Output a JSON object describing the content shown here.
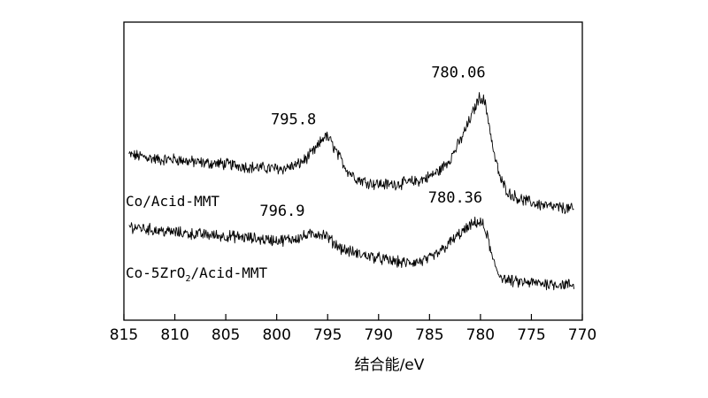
{
  "chart_data": {
    "type": "line",
    "xlabel": "结合能/eV",
    "ylabel": "",
    "xlim": [
      815,
      770
    ],
    "x_reversed": true,
    "x_ticks": [
      "815",
      "810",
      "805",
      "800",
      "795",
      "790",
      "785",
      "780",
      "775",
      "770"
    ],
    "y_ticks": false,
    "grid": false,
    "legend": "none",
    "series": [
      {
        "name": "Co/Acid-MMT",
        "label_parts": [
          "Co/Acid-MMT"
        ],
        "color": "#000000",
        "points": [
          [
            814.5,
            0.555
          ],
          [
            813,
            0.548
          ],
          [
            811.5,
            0.538
          ],
          [
            810,
            0.54
          ],
          [
            808.5,
            0.532
          ],
          [
            807,
            0.527
          ],
          [
            805.5,
            0.525
          ],
          [
            804,
            0.52
          ],
          [
            802.5,
            0.513
          ],
          [
            801,
            0.51
          ],
          [
            799.5,
            0.508
          ],
          [
            798,
            0.52
          ],
          [
            797,
            0.545
          ],
          [
            796,
            0.58
          ],
          [
            795.3,
            0.62
          ],
          [
            794.8,
            0.606
          ],
          [
            794,
            0.555
          ],
          [
            793,
            0.5
          ],
          [
            792,
            0.472
          ],
          [
            790.5,
            0.458
          ],
          [
            789,
            0.455
          ],
          [
            787.5,
            0.46
          ],
          [
            786,
            0.468
          ],
          [
            785,
            0.482
          ],
          [
            784,
            0.502
          ],
          [
            783,
            0.54
          ],
          [
            782,
            0.6
          ],
          [
            781,
            0.675
          ],
          [
            780.4,
            0.725
          ],
          [
            780.06,
            0.75
          ],
          [
            779.6,
            0.735
          ],
          [
            779.2,
            0.67
          ],
          [
            778.7,
            0.56
          ],
          [
            778,
            0.47
          ],
          [
            777.2,
            0.425
          ],
          [
            776,
            0.405
          ],
          [
            774.5,
            0.39
          ],
          [
            773,
            0.38
          ],
          [
            771.5,
            0.375
          ],
          [
            770.8,
            0.37
          ]
        ],
        "annotations": [
          {
            "text": "795.8",
            "x": 795.8
          },
          {
            "text": "780.06",
            "x": 780.06
          }
        ]
      },
      {
        "name": "Co-5ZrO2/Acid-MMT",
        "label_parts": [
          "Co-5ZrO",
          "2",
          "/Acid-MMT"
        ],
        "color": "#000000",
        "points": [
          [
            814.5,
            0.315
          ],
          [
            813,
            0.307
          ],
          [
            811.5,
            0.3
          ],
          [
            810,
            0.295
          ],
          [
            808.5,
            0.29
          ],
          [
            807,
            0.287
          ],
          [
            805.5,
            0.283
          ],
          [
            804,
            0.28
          ],
          [
            802.5,
            0.275
          ],
          [
            801,
            0.27
          ],
          [
            799.5,
            0.268
          ],
          [
            798,
            0.275
          ],
          [
            797,
            0.284
          ],
          [
            796,
            0.292
          ],
          [
            795.2,
            0.285
          ],
          [
            794.5,
            0.262
          ],
          [
            793.5,
            0.238
          ],
          [
            792,
            0.222
          ],
          [
            790.5,
            0.212
          ],
          [
            789,
            0.2
          ],
          [
            787.5,
            0.192
          ],
          [
            786,
            0.196
          ],
          [
            785,
            0.205
          ],
          [
            784,
            0.228
          ],
          [
            783,
            0.26
          ],
          [
            782,
            0.29
          ],
          [
            781,
            0.315
          ],
          [
            780.36,
            0.33
          ],
          [
            779.8,
            0.322
          ],
          [
            779.3,
            0.28
          ],
          [
            778.8,
            0.2
          ],
          [
            778.2,
            0.155
          ],
          [
            777.5,
            0.135
          ],
          [
            776.5,
            0.128
          ],
          [
            775,
            0.125
          ],
          [
            773.5,
            0.123
          ],
          [
            772,
            0.12
          ],
          [
            771,
            0.118
          ],
          [
            770.8,
            0.116
          ]
        ],
        "annotations": [
          {
            "text": "796.9",
            "x": 796.9
          },
          {
            "text": "780.36",
            "x": 780.36
          }
        ]
      }
    ]
  }
}
